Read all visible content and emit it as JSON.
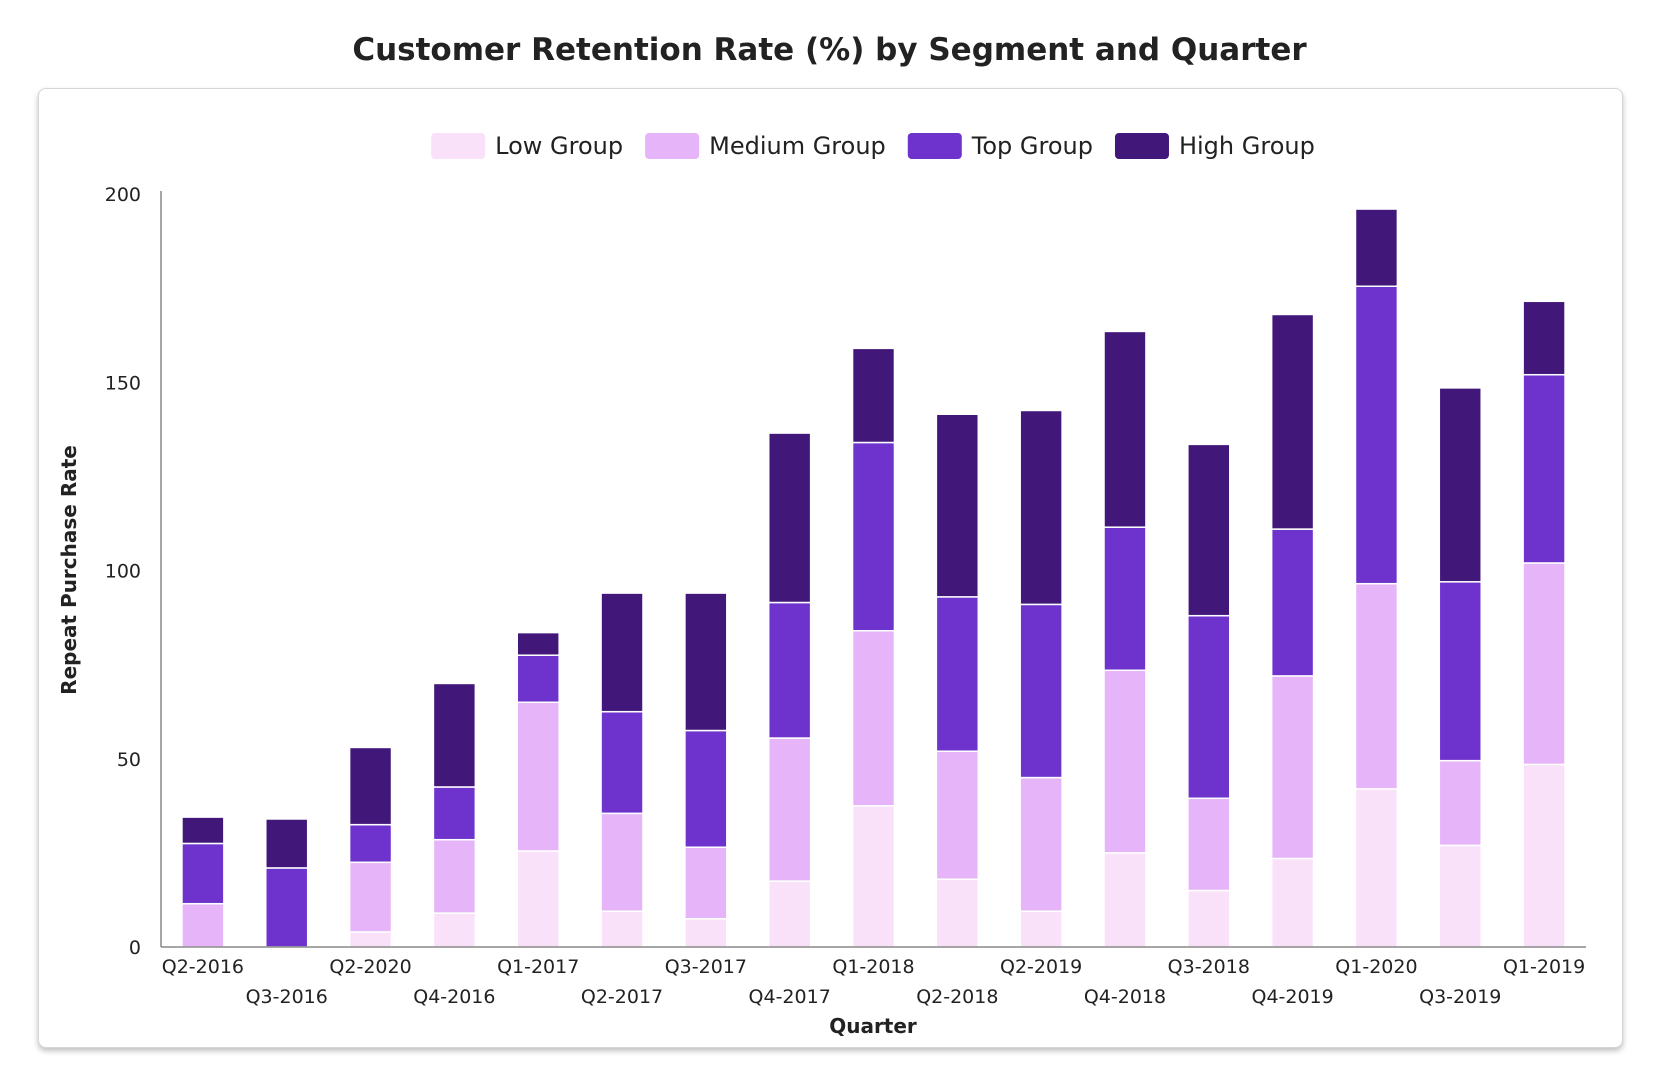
{
  "chart_data": {
    "type": "bar",
    "stacked": true,
    "title": "Customer Retention Rate (%) by Segment and Quarter",
    "xlabel": "Quarter",
    "ylabel": "Repeat Purchase Rate",
    "ylim": [
      0,
      200
    ],
    "yticks": [
      0,
      50,
      100,
      150,
      200
    ],
    "grid": false,
    "legend_position": "top-center",
    "categories": [
      "Q2-2016",
      "Q3-2016",
      "Q2-2020",
      "Q4-2016",
      "Q1-2017",
      "Q2-2017",
      "Q3-2017",
      "Q4-2017",
      "Q1-2018",
      "Q2-2018",
      "Q2-2019",
      "Q4-2018",
      "Q3-2018",
      "Q4-2019",
      "Q1-2020",
      "Q3-2019",
      "Q1-2019"
    ],
    "series": [
      {
        "name": "Low Group",
        "color": "#fae1fa",
        "values": [
          0,
          0,
          4,
          9,
          25.5,
          9.5,
          7.5,
          17.5,
          37.5,
          18,
          9.5,
          25,
          15,
          23.5,
          42,
          27,
          48.5
        ]
      },
      {
        "name": "Medium Group",
        "color": "#e6b4f8",
        "values": [
          11.5,
          0,
          18.5,
          19.5,
          39.5,
          26,
          19,
          38,
          46.5,
          34,
          35.5,
          48.5,
          24.5,
          48.5,
          54.5,
          22.5,
          53.5
        ]
      },
      {
        "name": "Top Group",
        "color": "#6e32cd",
        "values": [
          16,
          21,
          10,
          14,
          12.5,
          27,
          31,
          36,
          50,
          41,
          46,
          38,
          48.5,
          39,
          79,
          47.5,
          50
        ]
      },
      {
        "name": "High Group",
        "color": "#41177a",
        "values": [
          7,
          13,
          20.5,
          27.5,
          6,
          31.5,
          36.5,
          45,
          25,
          48.5,
          51.5,
          52,
          45.5,
          57,
          20.5,
          51.5,
          19.5
        ]
      }
    ]
  }
}
